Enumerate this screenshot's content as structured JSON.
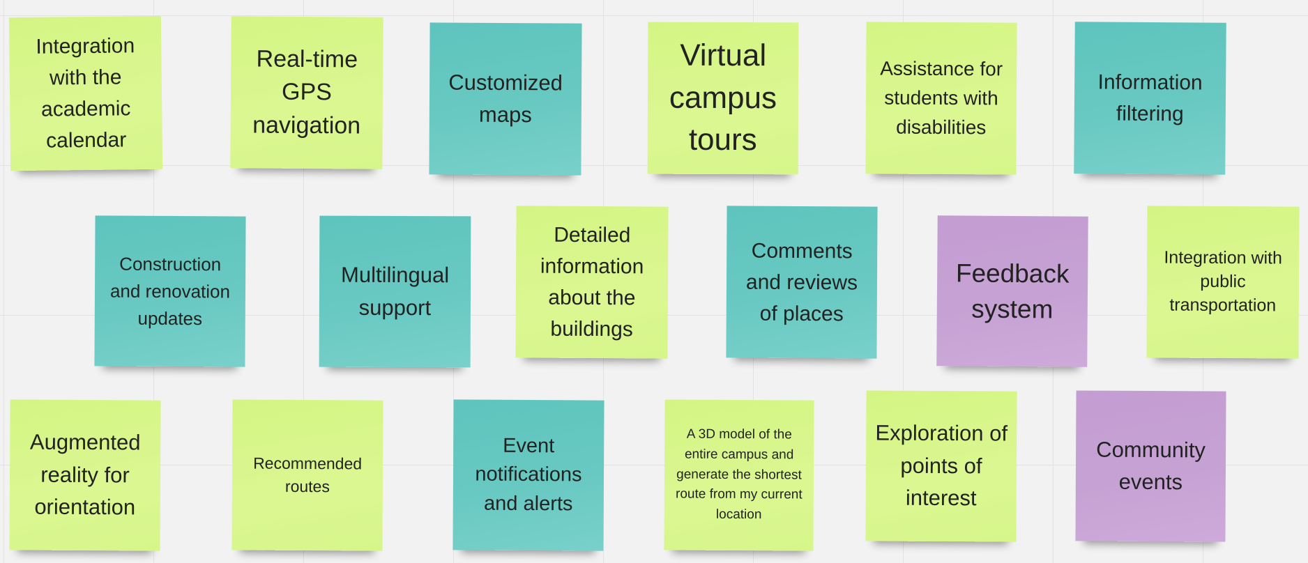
{
  "colors": {
    "green": "#d6f68a",
    "teal": "#66c8c1",
    "purple": "#c6a1d4",
    "grid": "#e2e2e2"
  },
  "notes": [
    {
      "id": "integration-academic-calendar",
      "color": "green",
      "text": "Integration with the academic calendar"
    },
    {
      "id": "real-time-gps-navigation",
      "color": "green",
      "text": "Real-time GPS navigation"
    },
    {
      "id": "customized-maps",
      "color": "teal",
      "text": "Customized maps"
    },
    {
      "id": "virtual-campus-tours",
      "color": "green",
      "text": "Virtual campus tours"
    },
    {
      "id": "assistance-students-disabilities",
      "color": "green",
      "text": "Assistance for students with disabilities"
    },
    {
      "id": "information-filtering",
      "color": "teal",
      "text": "Information filtering"
    },
    {
      "id": "construction-renovation-updates",
      "color": "teal",
      "text": "Construction and renovation updates"
    },
    {
      "id": "multilingual-support",
      "color": "teal",
      "text": "Multilingual support"
    },
    {
      "id": "detailed-building-information",
      "color": "green",
      "text": "Detailed information about the buildings"
    },
    {
      "id": "comments-reviews-places",
      "color": "teal",
      "text": "Comments and reviews of places"
    },
    {
      "id": "feedback-system",
      "color": "purple",
      "text": "Feedback system"
    },
    {
      "id": "integration-public-transportation",
      "color": "green",
      "text": "Integration with public transportation"
    },
    {
      "id": "augmented-reality-orientation",
      "color": "green",
      "text": "Augmented reality for orientation"
    },
    {
      "id": "recommended-routes",
      "color": "green",
      "text": "Recommended routes"
    },
    {
      "id": "event-notifications-alerts",
      "color": "teal",
      "text": "Event notifications and alerts"
    },
    {
      "id": "3d-model-shortest-route",
      "color": "green",
      "text": "A 3D model of the entire campus and generate the shortest route from my current location"
    },
    {
      "id": "exploration-points-of-interest",
      "color": "green",
      "text": "Exploration of points of interest"
    },
    {
      "id": "community-events",
      "color": "purple",
      "text": "Community events"
    }
  ]
}
